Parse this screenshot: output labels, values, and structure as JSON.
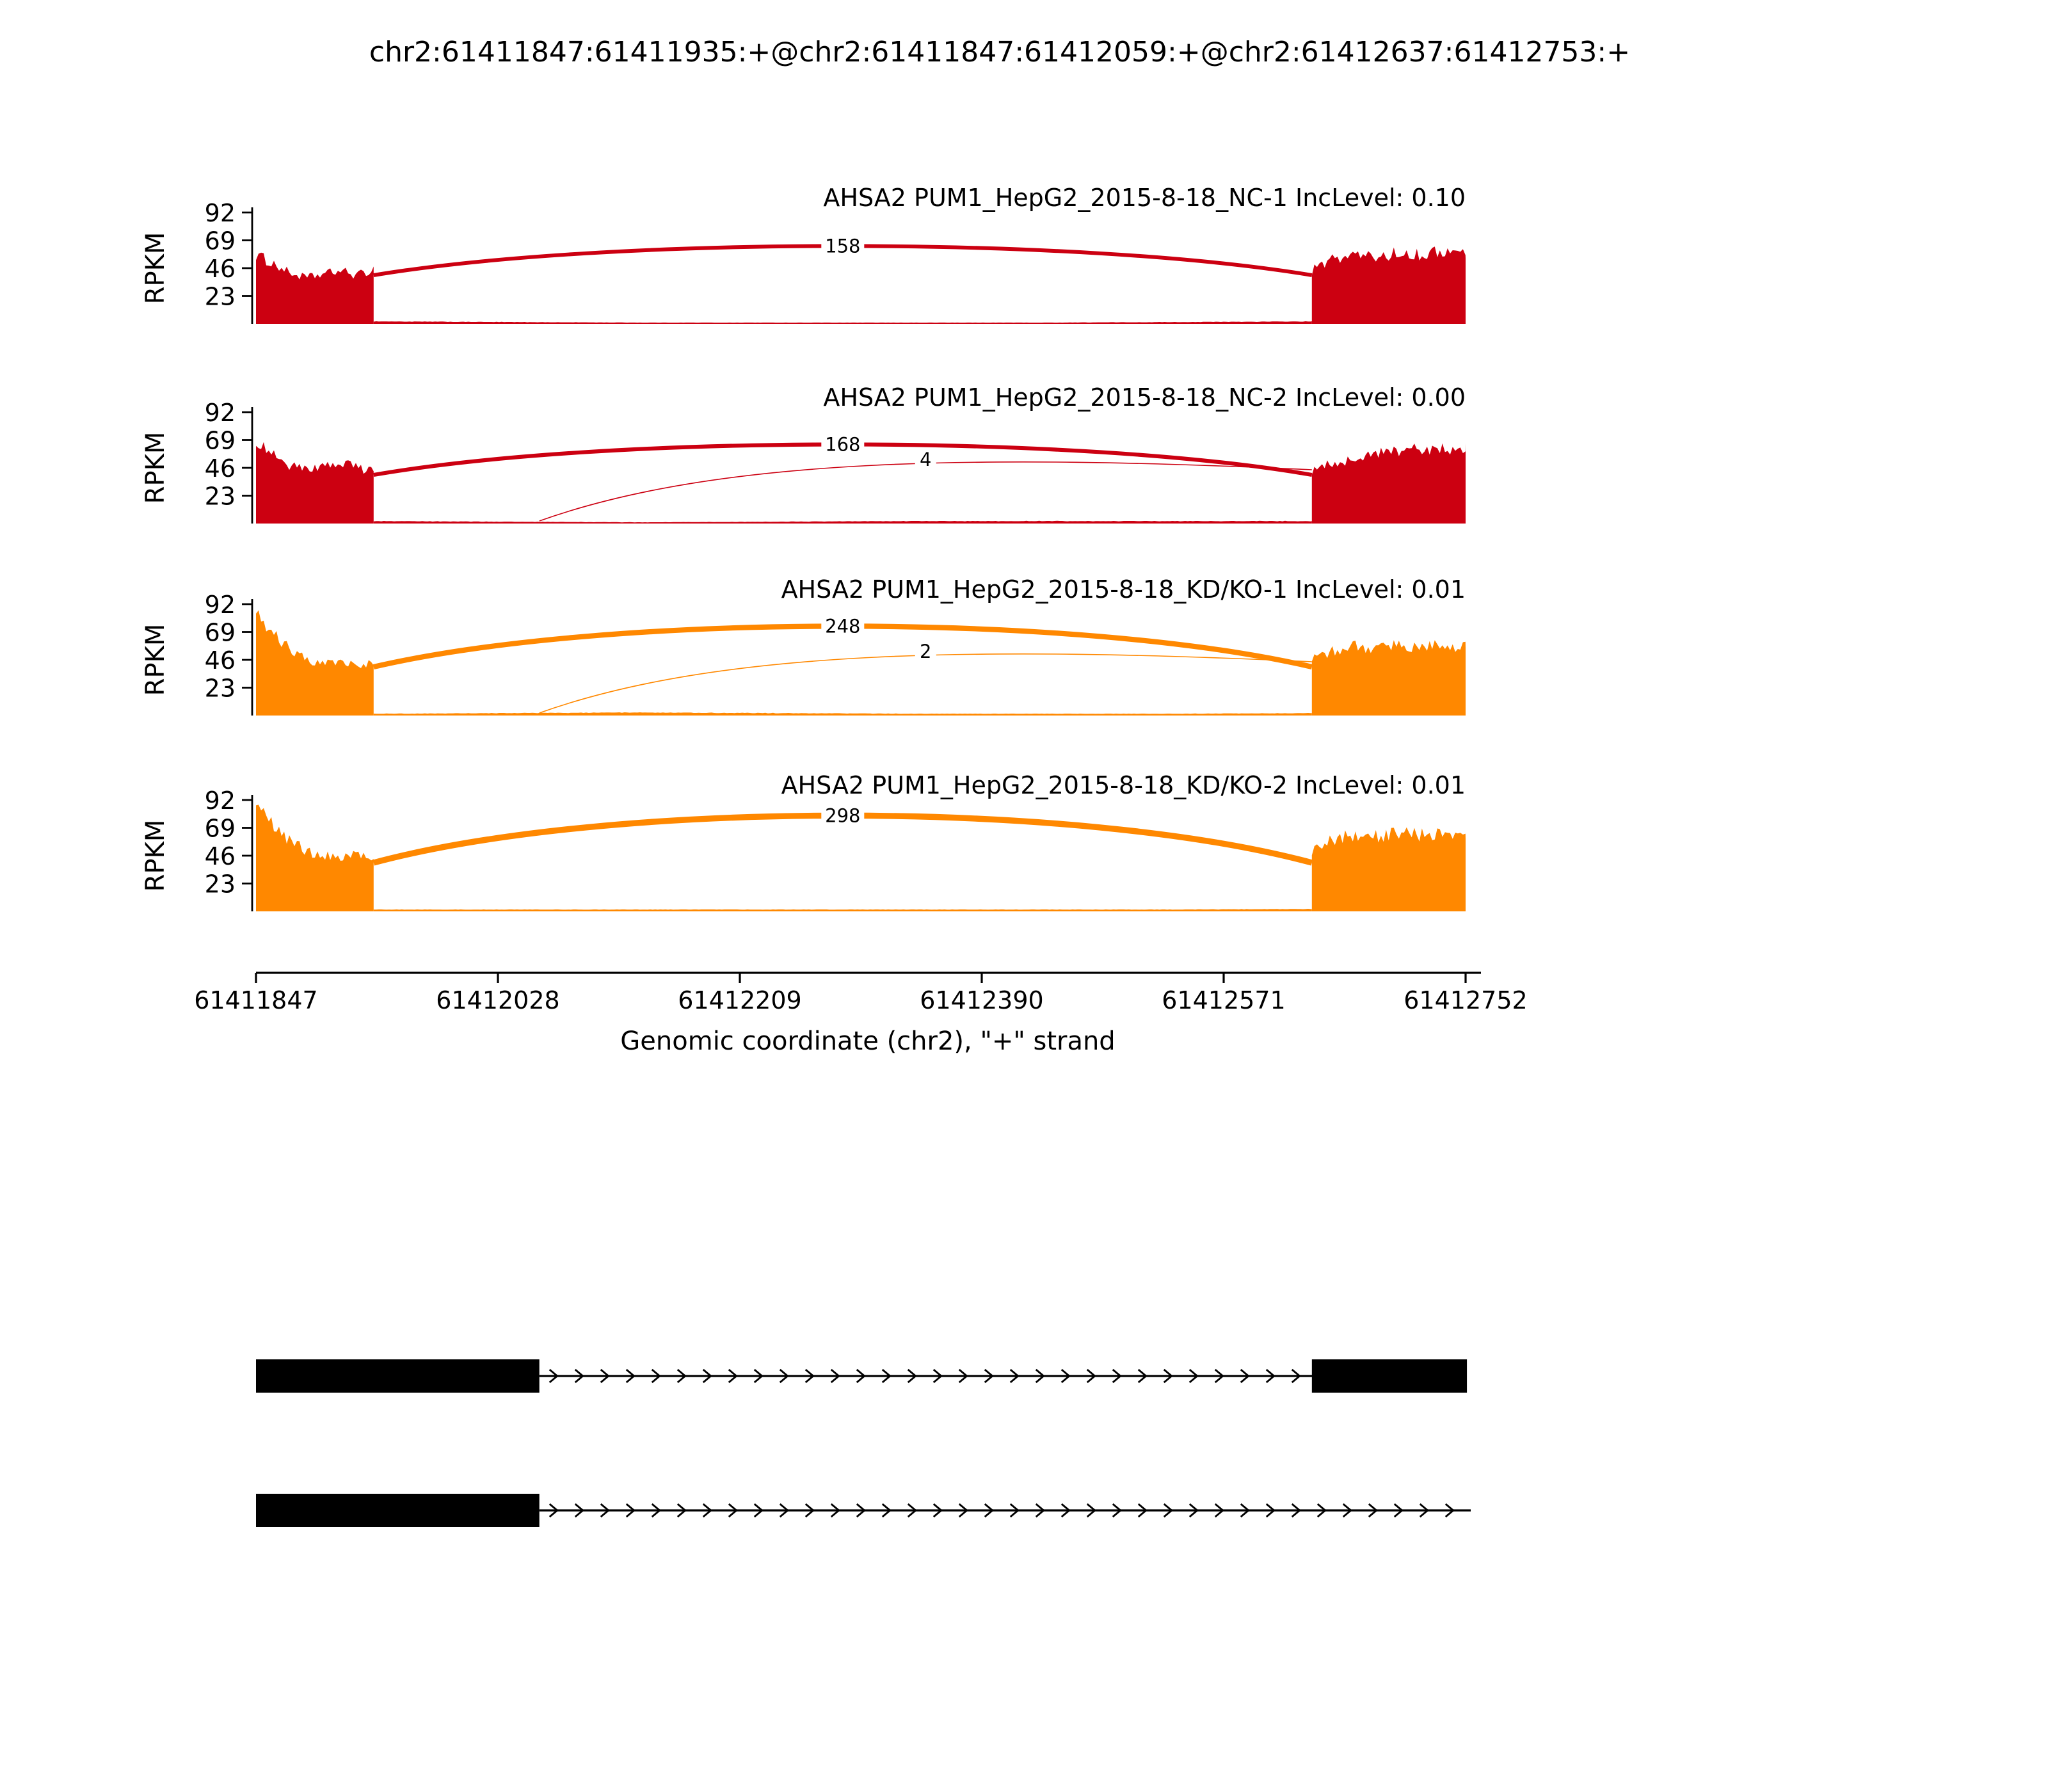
{
  "title": "chr2:61411847:61411935:+@chr2:61411847:61412059:+@chr2:61412637:61412753:+",
  "ylabel": "RPKM",
  "yticks": [
    92,
    69,
    46,
    23
  ],
  "xaxis": {
    "label": "Genomic coordinate (chr2), \"+\" strand",
    "min": 61411847,
    "max": 61412752,
    "ticks": [
      "61411847",
      "61412028",
      "61412209",
      "61412390",
      "61412571",
      "61412752"
    ],
    "tick_values": [
      61411847,
      61412028,
      61412209,
      61412390,
      61412571,
      61412752
    ]
  },
  "colors": {
    "nc": "#CC0011",
    "kd": "#FF8800",
    "axis": "#000000",
    "gene_model": "#000000"
  },
  "chart_data": {
    "type": "sashimi",
    "region": {
      "chrom": "chr2",
      "start": 61411847,
      "end": 61412752,
      "strand": "+"
    },
    "y_max_rpkm": 92,
    "tracks": [
      {
        "label": "AHSA2 PUM1_HepG2_2015-8-18_NC-1 IncLevel: 0.10",
        "sample": "NC-1",
        "inc_level": "0.10",
        "color": "#CC0011",
        "coverage": [
          {
            "start": 61411847,
            "end": 61411935,
            "profile": [
              57,
              50,
              42,
              38,
              41,
              44,
              40,
              45
            ]
          },
          {
            "start": 61411935,
            "end": 61412637,
            "profile": [
              2,
              1.5,
              1,
              1,
              1,
              1,
              1.5,
              2
            ]
          },
          {
            "start": 61412637,
            "end": 61412752,
            "profile": [
              44,
              54,
              57,
              55,
              59,
              57,
              60,
              58
            ]
          }
        ],
        "junctions": [
          {
            "from": 61411935,
            "to": 61412637,
            "count": 158
          }
        ]
      },
      {
        "label": "AHSA2 PUM1_HepG2_2015-8-18_NC-2 IncLevel: 0.00",
        "sample": "NC-2",
        "inc_level": "0.00",
        "color": "#CC0011",
        "coverage": [
          {
            "start": 61411847,
            "end": 61411935,
            "profile": [
              68,
              58,
              48,
              44,
              47,
              50,
              46,
              44
            ]
          },
          {
            "start": 61411935,
            "end": 61412637,
            "profile": [
              2,
              1.5,
              1,
              1.5,
              2,
              2,
              2,
              2
            ]
          },
          {
            "start": 61412637,
            "end": 61412752,
            "profile": [
              44,
              50,
              54,
              57,
              60,
              62,
              61,
              63
            ]
          }
        ],
        "junctions": [
          {
            "from": 61411935,
            "to": 61412637,
            "count": 168
          },
          {
            "from": 61412059,
            "to": 61412637,
            "count": 4
          }
        ]
      },
      {
        "label": "AHSA2 PUM1_HepG2_2015-8-18_KD/KO-1 IncLevel: 0.01",
        "sample": "KD/KO-1",
        "inc_level": "0.01",
        "color": "#FF8800",
        "coverage": [
          {
            "start": 61411847,
            "end": 61411935,
            "profile": [
              84,
              68,
              55,
              46,
              42,
              45,
              43,
              42
            ]
          },
          {
            "start": 61411935,
            "end": 61412637,
            "profile": [
              1.5,
              2,
              2.5,
              2,
              1.5,
              1.5,
              1.5,
              2
            ]
          },
          {
            "start": 61412637,
            "end": 61412752,
            "profile": [
              47,
              54,
              57,
              55,
              58,
              57,
              59,
              56
            ]
          }
        ],
        "junctions": [
          {
            "from": 61411935,
            "to": 61412637,
            "count": 248
          },
          {
            "from": 61412059,
            "to": 61412637,
            "count": 2
          }
        ]
      },
      {
        "label": "AHSA2 PUM1_HepG2_2015-8-18_KD/KO-2 IncLevel: 0.01",
        "sample": "KD/KO-2",
        "inc_level": "0.01",
        "color": "#FF8800",
        "coverage": [
          {
            "start": 61411847,
            "end": 61411935,
            "profile": [
              86,
              72,
              58,
              50,
              46,
              44,
              47,
              45
            ]
          },
          {
            "start": 61411935,
            "end": 61412637,
            "profile": [
              1.5,
              1.5,
              1.5,
              1.5,
              1.5,
              1.5,
              1.5,
              2
            ]
          },
          {
            "start": 61412637,
            "end": 61412752,
            "profile": [
              50,
              60,
              63,
              62,
              65,
              63,
              66,
              62
            ]
          }
        ],
        "junctions": [
          {
            "from": 61411935,
            "to": 61412637,
            "count": 298
          }
        ]
      }
    ]
  },
  "gene_model": {
    "isoforms": [
      {
        "exons": [
          [
            61411847,
            61412059
          ],
          [
            61412637,
            61412753
          ]
        ],
        "intron_lines": [
          [
            61412059,
            61412637
          ]
        ]
      },
      {
        "exons": [
          [
            61411847,
            61412059
          ]
        ],
        "intron_lines": [
          [
            61412059,
            61412752
          ]
        ]
      }
    ]
  }
}
